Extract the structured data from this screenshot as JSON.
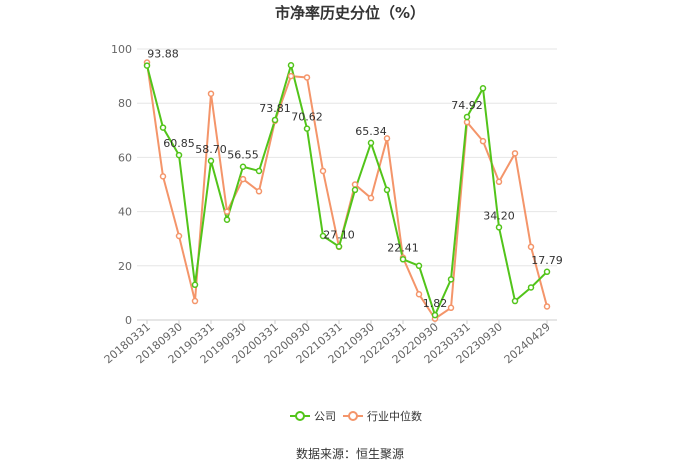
{
  "chart_data": {
    "type": "line",
    "title": "市净率历史分位（%）",
    "source": "数据来源：恒生聚源",
    "ylim": [
      0,
      100
    ],
    "yticks": [
      0,
      20,
      40,
      60,
      80,
      100
    ],
    "grid": true,
    "legend_position": "bottom",
    "x": [
      "20180331",
      "20180630",
      "20180930",
      "20181231",
      "20190331",
      "20190630",
      "20190930",
      "20191231",
      "20200331",
      "20200630",
      "20200930",
      "20201231",
      "20210331",
      "20210630",
      "20210930",
      "20211231",
      "20220331",
      "20220630",
      "20220930",
      "20221231",
      "20230331",
      "20230630",
      "20230930",
      "20231231",
      "20240331",
      "20240429"
    ],
    "x_tick_labels": [
      "20180331",
      "20180930",
      "20190331",
      "20190930",
      "20200331",
      "20200930",
      "20210331",
      "20210930",
      "20220331",
      "20220930",
      "20230331",
      "20230930",
      "20240429"
    ],
    "series": [
      {
        "name": "公司",
        "color": "#52c41a",
        "values": [
          93.88,
          71.0,
          60.85,
          13.0,
          58.7,
          37.0,
          56.55,
          55.0,
          73.81,
          94.0,
          70.62,
          31.0,
          27.1,
          48.0,
          65.34,
          48.0,
          22.41,
          20.0,
          1.82,
          15.0,
          74.92,
          85.5,
          34.2,
          7.0,
          12.0,
          17.79
        ],
        "labels": {
          "0": "93.88",
          "2": "60.85",
          "4": "58.70",
          "6": "56.55",
          "8": "73.81",
          "10": "70.62",
          "12": "27.10",
          "14": "65.34",
          "16": "22.41",
          "18": "1.82",
          "20": "74.92",
          "22": "34.20",
          "25": "17.79"
        }
      },
      {
        "name": "行业中位数",
        "color": "#f4956a",
        "values": [
          95.0,
          53.0,
          31.0,
          7.0,
          83.5,
          40.0,
          52.0,
          47.5,
          73.5,
          90.0,
          89.5,
          55.0,
          27.0,
          50.0,
          45.0,
          67.0,
          23.0,
          9.5,
          0.5,
          4.5,
          73.0,
          66.0,
          51.0,
          61.5,
          27.0,
          5.0
        ]
      }
    ]
  }
}
